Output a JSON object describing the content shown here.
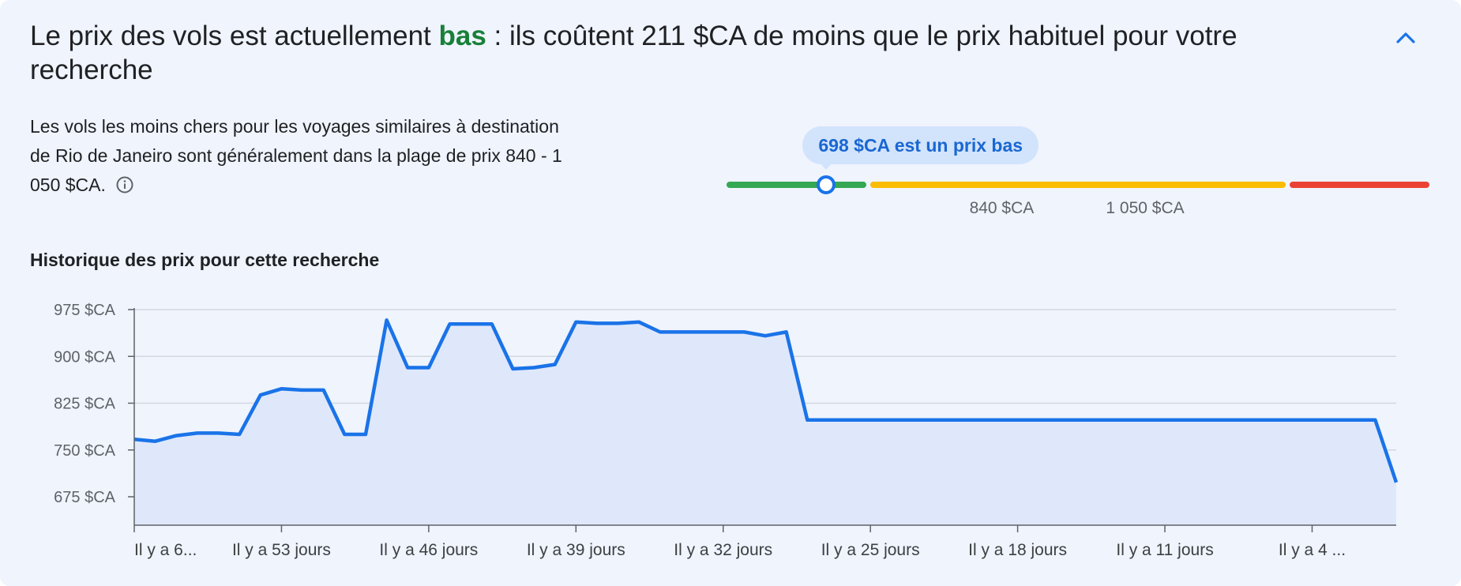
{
  "header": {
    "headline_before": "Le prix des vols est actuellement",
    "headline_level": "bas",
    "headline_after": " : ils coûtent 211 $CA de moins que le prix habituel pour votre recherche",
    "collapse_icon": "chevron-up-icon"
  },
  "summary": {
    "description": "Les vols les moins chers pour les voyages similaires à destination de Rio de Janeiro sont généralement dans la plage de prix 840 - 1 050 $CA.",
    "info_icon": "info-icon"
  },
  "gauge": {
    "current_price": 698,
    "range_low": 840,
    "range_high": 1050,
    "scale_min": 600,
    "scale_max": 1290,
    "bubble_text": "698 $CA est un prix bas",
    "low_label": "840 $CA",
    "high_label": "1 050 $CA",
    "colors": {
      "low": "#34a853",
      "typical": "#fbbc04",
      "high": "#ea4335",
      "marker": "#1a73e8"
    }
  },
  "history": {
    "title": "Historique des prix pour cette recherche"
  },
  "chart_data": {
    "type": "area",
    "title": "",
    "xlabel": "",
    "ylabel": "",
    "x_domain": [
      -60,
      0
    ],
    "ylim": [
      630,
      975
    ],
    "y_ticks": [
      {
        "value": 975,
        "label": "975 $CA"
      },
      {
        "value": 900,
        "label": "900 $CA"
      },
      {
        "value": 825,
        "label": "825 $CA"
      },
      {
        "value": 750,
        "label": "750 $CA"
      },
      {
        "value": 675,
        "label": "675 $CA"
      }
    ],
    "x_ticks": [
      {
        "value": -60,
        "label": "Il y a 6..."
      },
      {
        "value": -53,
        "label": "Il y a 53 jours"
      },
      {
        "value": -46,
        "label": "Il y a 46 jours"
      },
      {
        "value": -39,
        "label": "Il y a 39 jours"
      },
      {
        "value": -32,
        "label": "Il y a 32 jours"
      },
      {
        "value": -25,
        "label": "Il y a 25 jours"
      },
      {
        "value": -18,
        "label": "Il y a 18 jours"
      },
      {
        "value": -11,
        "label": "Il y a 11 jours"
      },
      {
        "value": -4,
        "label": "Il y a 4 ..."
      }
    ],
    "grid": true,
    "series": [
      {
        "x": [
          -60,
          -59,
          -58,
          -57,
          -56,
          -55,
          -54,
          -53,
          -52,
          -51,
          -50,
          -49,
          -48,
          -47,
          -46,
          -45,
          -44,
          -43,
          -42,
          -41,
          -40,
          -39,
          -38,
          -37,
          -36,
          -35,
          -34,
          -33,
          -32,
          -31,
          -30,
          -29,
          -28,
          -27,
          -26,
          -25,
          -24,
          -23,
          -22,
          -21,
          -20,
          -19,
          -18,
          -17,
          -16,
          -15,
          -14,
          -13,
          -12,
          -11,
          -10,
          -9,
          -8,
          -7,
          -6,
          -5,
          -4,
          -3,
          -2,
          -1,
          0
        ],
        "y": [
          767,
          764,
          773,
          777,
          777,
          775,
          838,
          848,
          846,
          846,
          775,
          775,
          958,
          882,
          882,
          952,
          952,
          952,
          880,
          882,
          887,
          955,
          953,
          953,
          955,
          939,
          939,
          939,
          939,
          939,
          933,
          939,
          798,
          798,
          798,
          798,
          798,
          798,
          798,
          798,
          798,
          798,
          798,
          798,
          798,
          798,
          798,
          798,
          798,
          798,
          798,
          798,
          798,
          798,
          798,
          798,
          798,
          798,
          798,
          798,
          698
        ]
      }
    ],
    "colors": {
      "line": "#1a73e8",
      "fill": "#dfe8fb",
      "grid": "#d2d7e0",
      "axis": "#5f6368"
    }
  }
}
